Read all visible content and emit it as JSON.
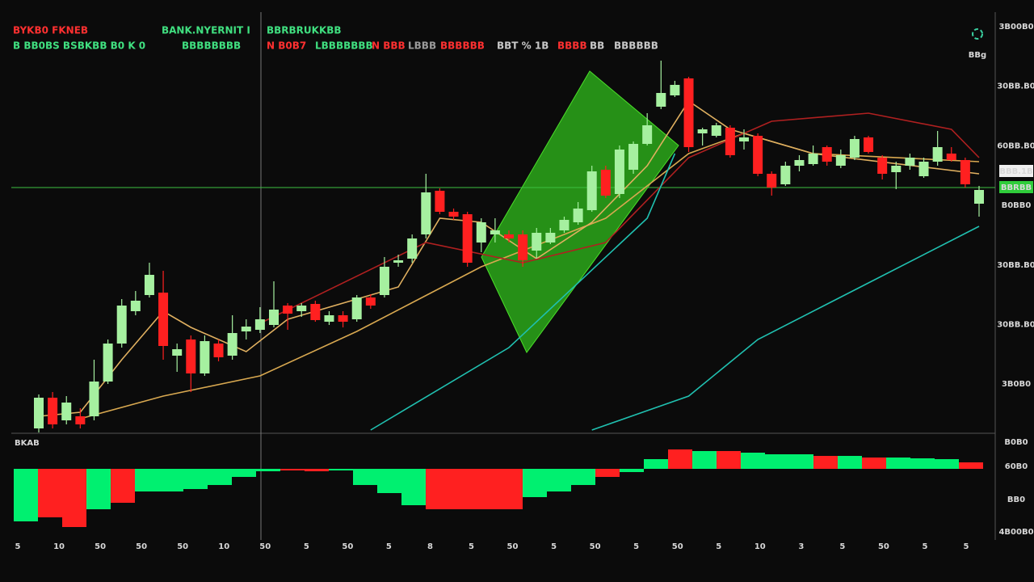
{
  "header": [
    {
      "text": "BYKB0 FKNEB",
      "color": "#ff3030"
    },
    {
      "text": "BANK.NYERNIT I",
      "color": "#40e080"
    },
    {
      "text": "BBRBRUKKBB",
      "color": "#40e080"
    },
    {
      "text": "B BB0BS BSBKBB B0 K 0",
      "color": "#40e080"
    },
    {
      "text": "BBBBBBBB",
      "color": "#40e080"
    },
    {
      "text": "N B0B7",
      "color": "#ff3030"
    },
    {
      "text": "LBBBBBBB",
      "color": "#40e080"
    },
    {
      "text": "N BBB",
      "color": "#ff3030"
    },
    {
      "text": "LBBB",
      "color": "#9a9a9a"
    },
    {
      "text": "BBBBBB",
      "color": "#ff3030"
    },
    {
      "text": "BBT % 1B",
      "color": "#c8c8c8"
    },
    {
      "text": "BBBB",
      "color": "#ff3030"
    },
    {
      "text": "BB",
      "color": "#c8c8c8"
    },
    {
      "text": "BBBBBB",
      "color": "#c8c8c8"
    }
  ],
  "toolbar": {
    "label": "BBg"
  },
  "chart_data": [
    {
      "type": "candlestick",
      "up_color": "#a6f0a0",
      "down_color": "#ff2020",
      "ylim": [
        0,
        520
      ],
      "axis_labels": [
        "3B00B0",
        "30BB.B0",
        "60BB.B0",
        "B0BB0",
        "30BB.B0",
        "30BB.B0",
        "3B0B0"
      ],
      "price_line": 303,
      "price_label": "BBRBB",
      "crosshair_label": "BBB.1B",
      "open": [
        5,
        43,
        15,
        20,
        20,
        63,
        110,
        150,
        170,
        173,
        95,
        115,
        73,
        110,
        95,
        125,
        127,
        133,
        157,
        150,
        159,
        137,
        145,
        140,
        167,
        170,
        210,
        215,
        245,
        299,
        273,
        270,
        235,
        245,
        245,
        245,
        225,
        235,
        250,
        260,
        275,
        325,
        295,
        325,
        357,
        403,
        417,
        438,
        370,
        367,
        377,
        360,
        367,
        320,
        307,
        330,
        332,
        353,
        330,
        340,
        365,
        340,
        322,
        330,
        317,
        335,
        345,
        337,
        283
      ],
      "close": [
        43,
        10,
        37,
        10,
        63,
        110,
        157,
        163,
        195,
        107,
        103,
        73,
        113,
        93,
        123,
        131,
        140,
        152,
        147,
        157,
        139,
        145,
        137,
        167,
        157,
        205,
        213,
        240,
        297,
        273,
        267,
        210,
        260,
        250,
        240,
        213,
        247,
        247,
        263,
        277,
        323,
        293,
        350,
        357,
        380,
        420,
        430,
        353,
        375,
        380,
        343,
        365,
        320,
        303,
        330,
        337,
        345,
        335,
        343,
        363,
        347,
        320,
        330,
        340,
        335,
        353,
        337,
        307,
        300
      ],
      "high": [
        47,
        50,
        45,
        30,
        90,
        115,
        165,
        175,
        210,
        200,
        110,
        120,
        120,
        115,
        145,
        140,
        155,
        187,
        160,
        160,
        163,
        150,
        150,
        170,
        171,
        217,
        220,
        245,
        320,
        302,
        277,
        273,
        265,
        265,
        250,
        250,
        253,
        253,
        267,
        285,
        330,
        330,
        355,
        360,
        395,
        460,
        435,
        440,
        377,
        383,
        380,
        375,
        370,
        323,
        335,
        343,
        355,
        355,
        350,
        367,
        367,
        343,
        335,
        345,
        340,
        373,
        353,
        340,
        305
      ],
      "low": [
        0,
        5,
        10,
        5,
        15,
        60,
        105,
        145,
        167,
        90,
        75,
        50,
        70,
        88,
        90,
        115,
        123,
        130,
        127,
        143,
        137,
        133,
        130,
        137,
        153,
        167,
        205,
        210,
        240,
        270,
        263,
        205,
        223,
        235,
        235,
        205,
        215,
        233,
        247,
        257,
        273,
        290,
        290,
        320,
        355,
        400,
        415,
        347,
        355,
        365,
        340,
        350,
        317,
        293,
        305,
        323,
        330,
        330,
        327,
        337,
        345,
        313,
        301,
        325,
        315,
        330,
        335,
        303,
        267
      ],
      "lines": [
        {
          "color": "#d8a850",
          "x": [
            3,
            9,
            16,
            23,
            32,
            41,
            47,
            51,
            56,
            68
          ],
          "values": [
            17,
            45,
            70,
            125,
            205,
            265,
            345,
            370,
            345,
            335
          ]
        },
        {
          "color": "#e0b060",
          "x": [
            0,
            3,
            6,
            9,
            11,
            15,
            18,
            26,
            29,
            32,
            36,
            40,
            44,
            47,
            50,
            56,
            68
          ],
          "values": [
            20,
            25,
            90,
            150,
            130,
            100,
            140,
            180,
            265,
            260,
            215,
            260,
            330,
            410,
            375,
            345,
            320
          ]
        },
        {
          "color": "#b02020",
          "x": [
            16,
            28,
            35,
            41,
            47,
            53,
            60,
            66,
            68
          ],
          "values": [
            135,
            235,
            210,
            235,
            340,
            385,
            395,
            375,
            340
          ]
        },
        {
          "color": "#20c0b0",
          "x": [
            24,
            34,
            44,
            46
          ],
          "values": [
            3,
            105,
            265,
            345
          ]
        },
        {
          "color": "#20c0b0",
          "x": [
            40,
            47,
            52,
            60,
            68
          ],
          "values": [
            3,
            45,
            115,
            185,
            255
          ]
        }
      ]
    },
    {
      "type": "bar",
      "label": "BKAB",
      "ylim": [
        -90,
        40
      ],
      "axis_labels": [
        "B0B0",
        "60B0",
        "BB0",
        "4B00B0"
      ],
      "x_labels": [
        "5",
        "10",
        "50",
        "50",
        "50",
        "10",
        "50",
        "5",
        "50",
        "5",
        "8",
        "5",
        "50",
        "5",
        "50",
        "5",
        "50",
        "5",
        "10",
        "3",
        "5",
        "50",
        "5",
        "5"
      ],
      "colors": [
        "#00f070",
        "#ff2020",
        "#ff2020",
        "#00f070",
        "#ff2020",
        "#00f070",
        "#00f070",
        "#00f070",
        "#00f070",
        "#00f070",
        "#00f070",
        "#ff2020",
        "#ff2020",
        "#00f070",
        "#00f070",
        "#00f070",
        "#00f070",
        "#ff2020",
        "#ff2020",
        "#ff2020",
        "#ff2020",
        "#00f070",
        "#00f070",
        "#00f070",
        "#ff2020",
        "#00f070",
        "#00f070",
        "#ff2020",
        "#00f070",
        "#ff2020",
        "#00f070",
        "#00f070",
        "#00f070",
        "#ff2020",
        "#00f070",
        "#ff2020",
        "#00f070",
        "#00f070",
        "#00f070",
        "#ff2020"
      ],
      "values": [
        -65,
        -60,
        -72,
        -50,
        -42,
        -28,
        -28,
        -25,
        -20,
        -10,
        -3,
        -2,
        -3,
        -2,
        -20,
        -30,
        -45,
        -50,
        -50,
        -50,
        -50,
        -35,
        -28,
        -20,
        -10,
        -4,
        12,
        24,
        22,
        22,
        20,
        18,
        18,
        16,
        16,
        14,
        14,
        13,
        12,
        8
      ]
    }
  ]
}
